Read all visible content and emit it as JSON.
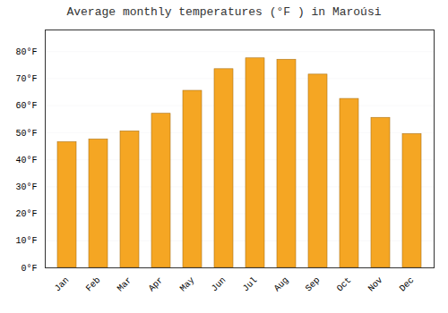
{
  "chart_data": {
    "type": "bar",
    "title": "Average monthly temperatures (°F ) in Maroúsi",
    "categories": [
      "Jan",
      "Feb",
      "Mar",
      "Apr",
      "May",
      "Jun",
      "Jul",
      "Aug",
      "Sep",
      "Oct",
      "Nov",
      "Dec"
    ],
    "values": [
      46.5,
      47.5,
      50.5,
      57.0,
      65.5,
      73.5,
      77.5,
      77.0,
      71.5,
      62.5,
      55.5,
      49.5
    ],
    "color": "#F5A623",
    "ylim": [
      0,
      88
    ],
    "yticks": [
      {
        "value": 0,
        "label": "0°F"
      },
      {
        "value": 10,
        "label": "10°F"
      },
      {
        "value": 20,
        "label": "20°F"
      },
      {
        "value": 30,
        "label": "30°F"
      },
      {
        "value": 40,
        "label": "40°F"
      },
      {
        "value": 50,
        "label": "50°F"
      },
      {
        "value": 60,
        "label": "60°F"
      },
      {
        "value": 70,
        "label": "70°F"
      },
      {
        "value": 80,
        "label": "80°F"
      }
    ],
    "grid": true
  }
}
